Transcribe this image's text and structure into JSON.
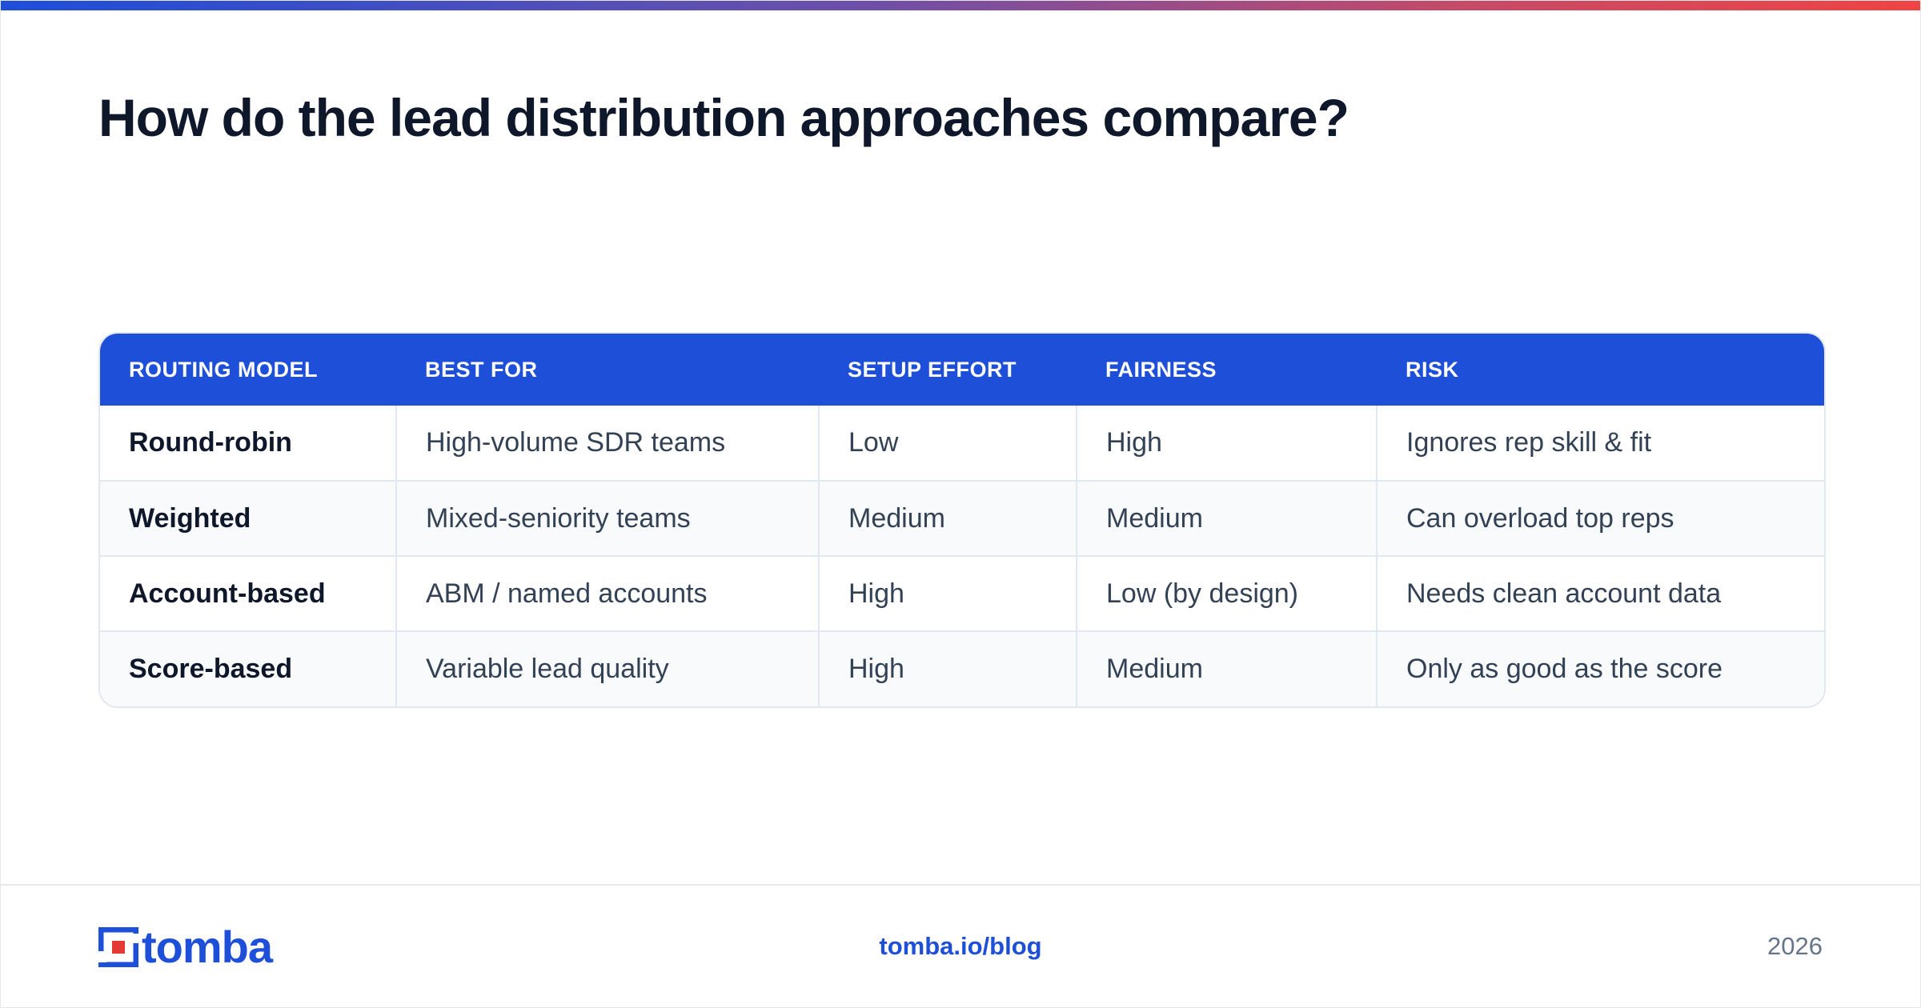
{
  "title": "How do the lead distribution approaches compare?",
  "table": {
    "headers": [
      "ROUTING MODEL",
      "BEST FOR",
      "SETUP EFFORT",
      "FAIRNESS",
      "RISK"
    ],
    "rows": [
      [
        "Round-robin",
        "High-volume SDR teams",
        "Low",
        "High",
        "Ignores rep skill & fit"
      ],
      [
        "Weighted",
        "Mixed-seniority teams",
        "Medium",
        "Medium",
        "Can overload top reps"
      ],
      [
        "Account-based",
        "ABM / named accounts",
        "High",
        "Low (by design)",
        "Needs clean account data"
      ],
      [
        "Score-based",
        "Variable lead quality",
        "High",
        "Medium",
        "Only as good as the score"
      ]
    ]
  },
  "footer": {
    "logo_text": "tomba",
    "site": "tomba.io/blog",
    "year": "2026"
  },
  "colors": {
    "accent": "#1d4fd8",
    "logo_red": "#e53935",
    "title": "#0f172a",
    "muted": "#64748b"
  },
  "icons": {
    "logo_mark": "tomba-bracket-logo-icon"
  }
}
